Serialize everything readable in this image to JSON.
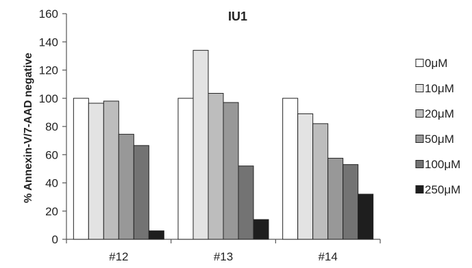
{
  "chart_data": {
    "type": "bar",
    "title": "IU1",
    "xlabel": "",
    "ylabel": "% Annexin-V/7-AAD negative",
    "categories": [
      "#12",
      "#13",
      "#14"
    ],
    "ylim": [
      0,
      160
    ],
    "yticks": [
      0,
      20,
      40,
      60,
      80,
      100,
      120,
      140,
      160
    ],
    "grid": false,
    "legend_position": "right",
    "series": [
      {
        "name": "0μM",
        "color": "#ffffff",
        "values": [
          100,
          100,
          100
        ]
      },
      {
        "name": "10μM",
        "color": "#e3e3e3",
        "values": [
          96.5,
          134,
          89
        ]
      },
      {
        "name": "20μM",
        "color": "#bdbdbd",
        "values": [
          98,
          103.5,
          82
        ]
      },
      {
        "name": "50μM",
        "color": "#989898",
        "values": [
          74.5,
          97,
          57.5
        ]
      },
      {
        "name": "100μM",
        "color": "#737373",
        "values": [
          66.5,
          52,
          53
        ]
      },
      {
        "name": "250μM",
        "color": "#1e1e1e",
        "values": [
          6,
          14,
          32
        ]
      }
    ]
  }
}
